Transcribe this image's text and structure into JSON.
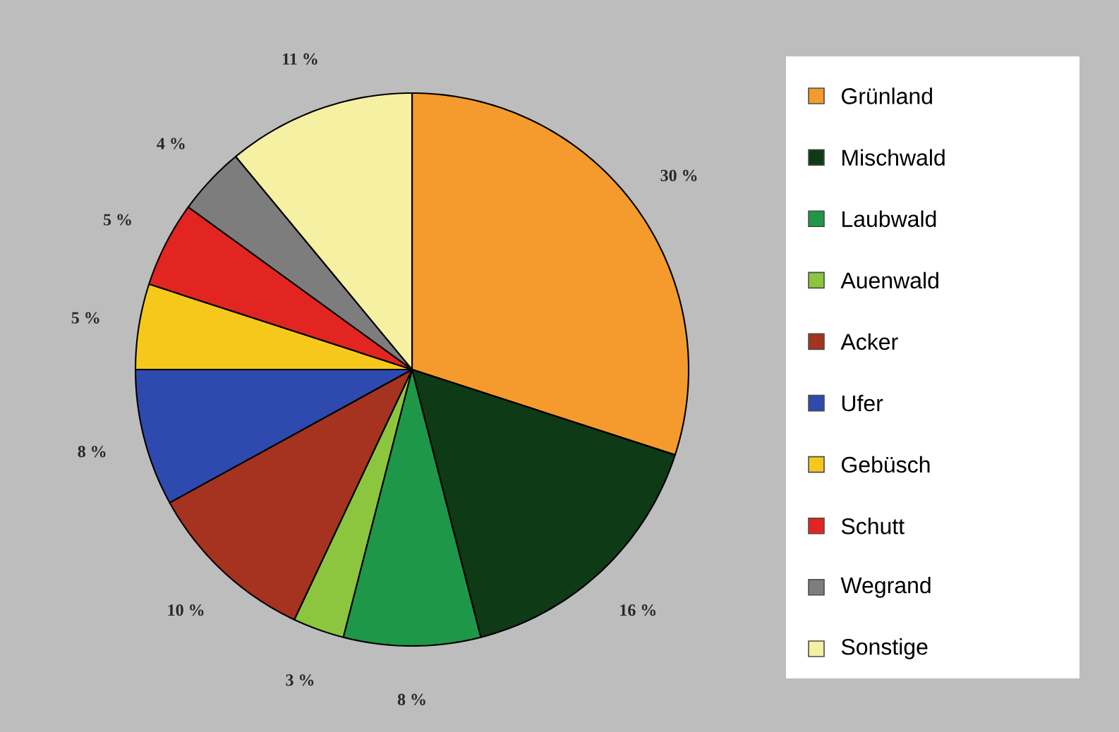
{
  "chart_data": {
    "type": "pie",
    "categories": [
      "Grünland",
      "Mischwald",
      "Laubwald",
      "Auenwald",
      "Acker",
      "Ufer",
      "Gebüsch",
      "Schutt",
      "Wegrand",
      "Sonstige"
    ],
    "values": [
      30,
      16,
      8,
      3,
      10,
      8,
      5,
      5,
      4,
      11
    ],
    "value_labels": [
      "30 %",
      "16 %",
      "8 %",
      "3 %",
      "10 %",
      "8 %",
      "5 %",
      "5 %",
      "4 %",
      "11 %"
    ],
    "colors": [
      "#f59a2c",
      "#0e3a16",
      "#1e9748",
      "#8cc63e",
      "#a5331f",
      "#2e4aae",
      "#f6c81c",
      "#e32522",
      "#7d7d7d",
      "#f6f0a2"
    ],
    "legend": "right"
  }
}
